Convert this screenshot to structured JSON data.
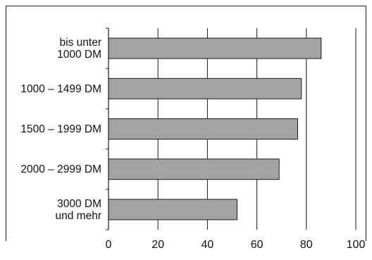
{
  "chart_data": {
    "type": "bar",
    "orientation": "horizontal",
    "title": "",
    "xlabel": "",
    "ylabel": "",
    "categories": [
      "bis unter\n1000 DM",
      "1000 – 1499 DM",
      "1500 – 1999 DM",
      "2000 – 2999 DM",
      "3000 DM\nund mehr"
    ],
    "values": [
      86,
      78,
      76.5,
      69,
      52
    ],
    "xlim": [
      0,
      100
    ],
    "xticks": [
      0,
      20,
      40,
      60,
      80,
      100
    ],
    "grid": true,
    "legend": "none",
    "bar_color": "#a3a3a3",
    "bar_edge_color": "#1a1a1a"
  }
}
